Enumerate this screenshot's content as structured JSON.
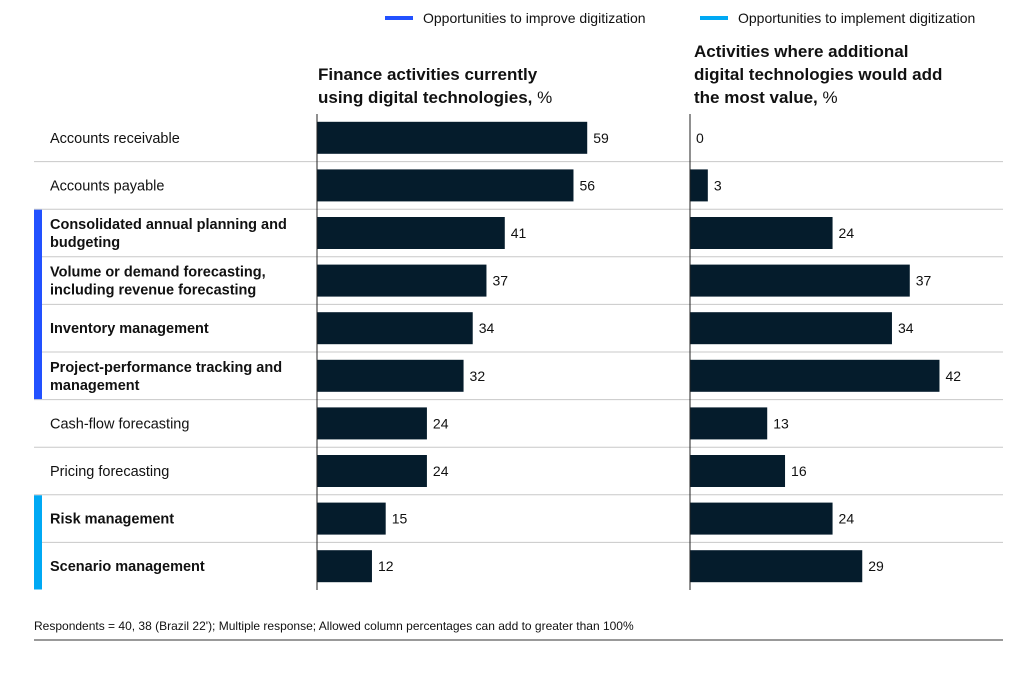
{
  "legend": [
    {
      "label": "Opportunities to improve digitization",
      "color": "#2251ff"
    },
    {
      "label": "Opportunities to implement digitization",
      "color": "#00a9f4"
    }
  ],
  "footnote": "Respondents = 40, 38 (Brazil 22'); Multiple response; Allowed column percentages can add  to greater than 100%",
  "colors": {
    "bar": "#051c2c",
    "grid": "#c8c8c8",
    "axis": "#222222",
    "rule": "#333333"
  },
  "chart_data": {
    "type": "bar",
    "orientation": "horizontal",
    "categories": [
      "Accounts receivable",
      "Accounts payable",
      "Consolidated annual planning and budgeting",
      "Volume or demand forecasting, including revenue forecasting",
      "Inventory management",
      "Project-performance tracking and management",
      "Cash-flow forecasting",
      "Pricing forecasting",
      "Risk management",
      "Scenario management"
    ],
    "category_lines": [
      [
        "Accounts receivable"
      ],
      [
        "Accounts payable"
      ],
      [
        "Consolidated annual planning and",
        "budgeting"
      ],
      [
        "Volume or demand forecasting,",
        "including revenue forecasting"
      ],
      [
        "Inventory management"
      ],
      [
        "Project-performance tracking and",
        "management"
      ],
      [
        "Cash-flow forecasting"
      ],
      [
        "Pricing forecasting"
      ],
      [
        "Risk management"
      ],
      [
        "Scenario management"
      ]
    ],
    "category_group": [
      null,
      null,
      "improve",
      "improve",
      "improve",
      "improve",
      null,
      null,
      "implement",
      "implement"
    ],
    "series": [
      {
        "name": "Finance activities currently using digital technologies, %",
        "title_lines": [
          "Finance activities currently",
          "using digital technologies,"
        ],
        "title_suffix": " %",
        "values": [
          59,
          56,
          41,
          37,
          34,
          32,
          24,
          24,
          15,
          12
        ]
      },
      {
        "name": "Activities where additional digital technologies would add the most value, %",
        "title_lines": [
          "Activities where additional",
          "digital technologies would add",
          "the most value,"
        ],
        "title_suffix": " %",
        "values": [
          0,
          3,
          24,
          37,
          34,
          42,
          13,
          16,
          24,
          29
        ]
      }
    ],
    "xlim": [
      0,
      60
    ]
  }
}
